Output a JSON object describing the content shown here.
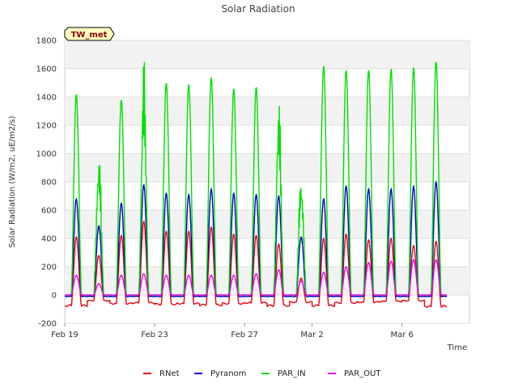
{
  "chart_data": {
    "type": "line",
    "title": "Solar Radiation",
    "xlabel": "Time",
    "ylabel": "Solar Radiation (W/m2, uE/m2/s)",
    "tag": "TW_met",
    "ylim": [
      -200,
      1800
    ],
    "yticks": [
      -200,
      0,
      200,
      400,
      600,
      800,
      1000,
      1200,
      1400,
      1600,
      1800
    ],
    "xlim": [
      "2021-02-19",
      "2021-03-09"
    ],
    "xticks": [
      {
        "date": "2021-02-19",
        "label": "Feb 19"
      },
      {
        "date": "2021-02-23",
        "label": "Feb 23"
      },
      {
        "date": "2021-02-27",
        "label": "Feb 27"
      },
      {
        "date": "2021-03-02",
        "label": "Mar 2"
      },
      {
        "date": "2021-03-06",
        "label": "Mar 6"
      }
    ],
    "grid": "horizontal bands",
    "legend_position": "bottom",
    "days": [
      "2021-02-19",
      "2021-02-20",
      "2021-02-21",
      "2021-02-22",
      "2021-02-23",
      "2021-02-24",
      "2021-02-25",
      "2021-02-26",
      "2021-02-27",
      "2021-02-28",
      "2021-03-01",
      "2021-03-02",
      "2021-03-03",
      "2021-03-04",
      "2021-03-05",
      "2021-03-06",
      "2021-03-07"
    ],
    "series": [
      {
        "name": "RNet",
        "color": "#e8000b",
        "day_peaks": [
          410,
          280,
          420,
          520,
          450,
          450,
          480,
          430,
          420,
          360,
          120,
          400,
          430,
          390,
          400,
          350,
          380
        ],
        "night": [
          -75,
          -40,
          -60,
          -55,
          -65,
          -60,
          -70,
          -60,
          -55,
          -75,
          -50,
          -75,
          -55,
          -50,
          -45,
          -40,
          -80
        ]
      },
      {
        "name": "Pyranom",
        "color": "#0000cc",
        "day_peaks": [
          680,
          490,
          650,
          780,
          720,
          710,
          750,
          720,
          710,
          700,
          410,
          680,
          770,
          750,
          750,
          770,
          800
        ],
        "night": [
          -10,
          -10,
          -10,
          -10,
          -10,
          -10,
          -10,
          -10,
          -10,
          -10,
          -10,
          -10,
          -10,
          -10,
          -10,
          -10,
          -10
        ]
      },
      {
        "name": "PAR_IN",
        "color": "#00e000",
        "day_peaks": [
          1420,
          1090,
          1380,
          1740,
          1500,
          1490,
          1540,
          1460,
          1470,
          1480,
          930,
          1620,
          1590,
          1590,
          1600,
          1610,
          1650
        ],
        "night": [
          0,
          0,
          0,
          0,
          0,
          0,
          0,
          0,
          0,
          0,
          0,
          0,
          0,
          0,
          0,
          0,
          0
        ]
      },
      {
        "name": "PAR_OUT",
        "color": "#ee00ee",
        "day_peaks": [
          140,
          80,
          140,
          150,
          140,
          140,
          140,
          140,
          150,
          180,
          100,
          160,
          200,
          230,
          240,
          250,
          250
        ],
        "night": [
          0,
          0,
          0,
          0,
          0,
          0,
          0,
          0,
          0,
          0,
          0,
          0,
          0,
          0,
          0,
          0,
          0
        ]
      }
    ]
  }
}
